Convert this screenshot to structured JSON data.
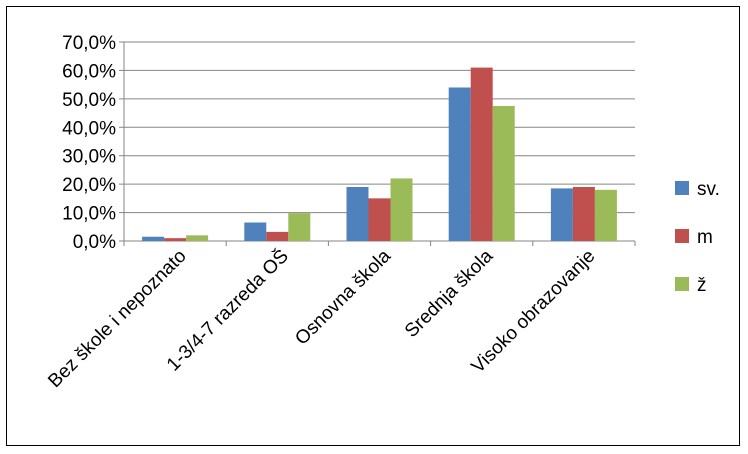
{
  "chart_data": {
    "type": "bar",
    "categories": [
      "Bez škole i nepoznato",
      "1-3/4-7 razreda OŠ",
      "Osnovna škola",
      "Srednja škola",
      "Visoko obrazovanje"
    ],
    "series": [
      {
        "name": "sv.",
        "color": "#4F81BD",
        "values": [
          1.5,
          6.5,
          19.0,
          54.0,
          18.5
        ]
      },
      {
        "name": "m",
        "color": "#C0504D",
        "values": [
          1.0,
          3.2,
          15.0,
          61.0,
          19.0
        ]
      },
      {
        "name": "ž",
        "color": "#9BBB59",
        "values": [
          2.0,
          9.8,
          22.0,
          47.5,
          18.0
        ]
      }
    ],
    "ylim": [
      0,
      70
    ],
    "yticks": [
      "0,0%",
      "10,0%",
      "20,0%",
      "30,0%",
      "40,0%",
      "50,0%",
      "60,0%",
      "70,0%"
    ],
    "grid": true,
    "legend": "right"
  }
}
